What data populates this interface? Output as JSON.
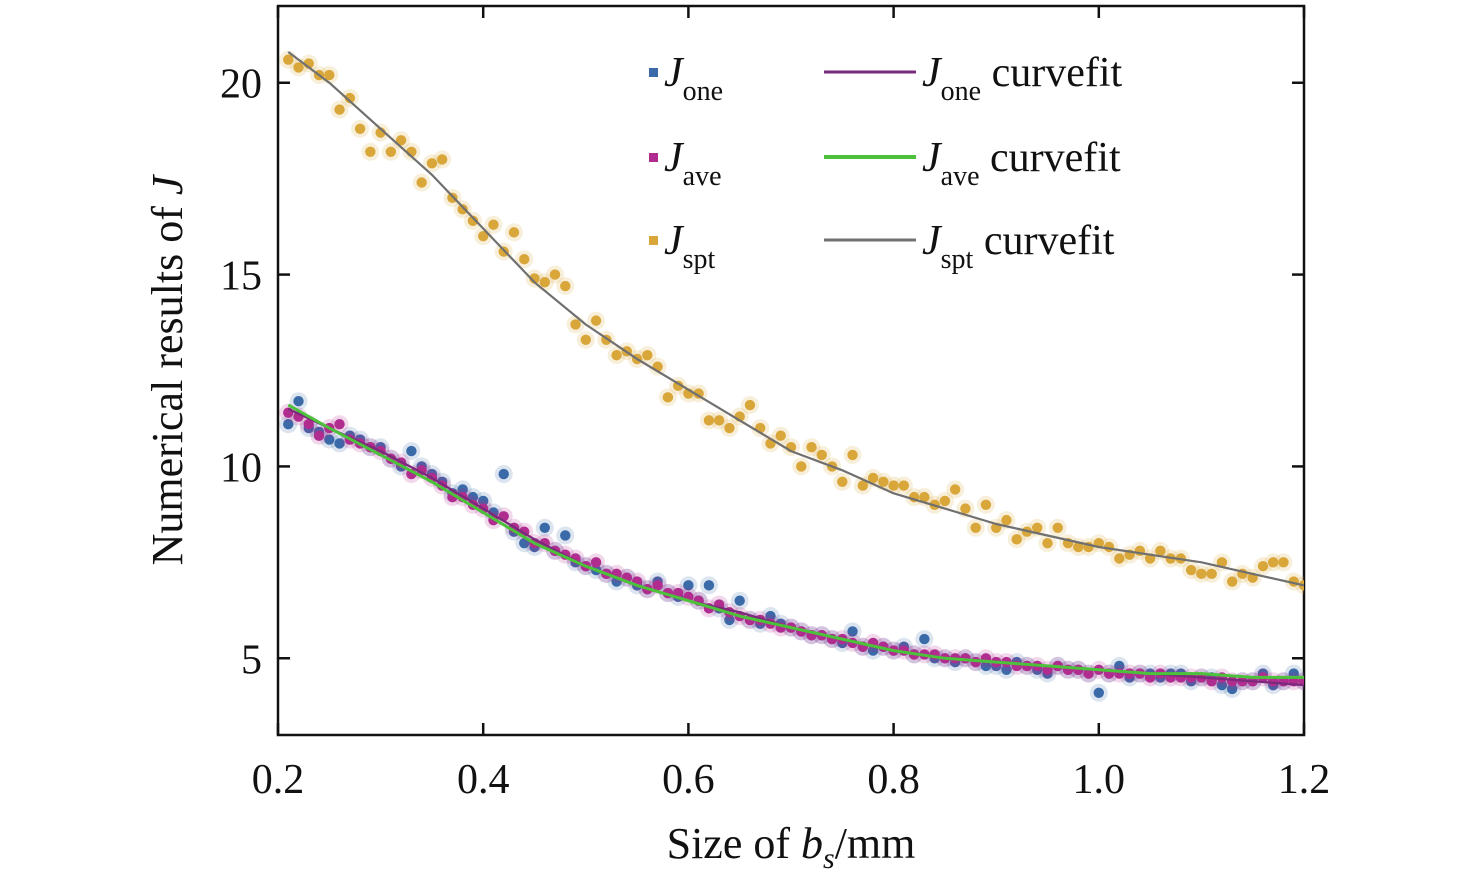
{
  "chart_data": {
    "type": "scatter",
    "xlabel": {
      "prefix": "Size of ",
      "var": "b",
      "sub": "s",
      "unit": "/mm"
    },
    "ylabel": {
      "prefix": "Numerical results of ",
      "var": "J"
    },
    "xlim": [
      0.2,
      1.2
    ],
    "ylim": [
      3.0,
      22.0
    ],
    "x_ticks": [
      0.2,
      0.4,
      0.6,
      0.8,
      1.0,
      1.2
    ],
    "x_tick_labels": [
      "0.2",
      "0.4",
      "0.6",
      "0.8",
      "1.0",
      "1.2"
    ],
    "y_ticks": [
      5,
      10,
      15,
      20
    ],
    "y_tick_labels": [
      "5",
      "10",
      "15",
      "20"
    ],
    "grid": false,
    "legend_position": "top-right",
    "series": [
      {
        "name": "J_one",
        "legend": {
          "var": "J",
          "sub": "one"
        },
        "kind": "points",
        "color": "#3a6aa8",
        "x": [
          0.21,
          0.22,
          0.23,
          0.24,
          0.25,
          0.26,
          0.27,
          0.28,
          0.29,
          0.3,
          0.31,
          0.32,
          0.33,
          0.34,
          0.35,
          0.36,
          0.37,
          0.38,
          0.39,
          0.4,
          0.41,
          0.42,
          0.43,
          0.44,
          0.45,
          0.46,
          0.47,
          0.48,
          0.49,
          0.5,
          0.51,
          0.52,
          0.53,
          0.54,
          0.55,
          0.56,
          0.57,
          0.58,
          0.59,
          0.6,
          0.61,
          0.62,
          0.63,
          0.64,
          0.65,
          0.66,
          0.67,
          0.68,
          0.69,
          0.7,
          0.71,
          0.72,
          0.73,
          0.74,
          0.75,
          0.76,
          0.77,
          0.78,
          0.79,
          0.8,
          0.81,
          0.82,
          0.83,
          0.84,
          0.85,
          0.86,
          0.87,
          0.88,
          0.89,
          0.9,
          0.91,
          0.92,
          0.93,
          0.94,
          0.95,
          0.96,
          0.97,
          0.98,
          0.99,
          1.0,
          1.01,
          1.02,
          1.03,
          1.04,
          1.05,
          1.06,
          1.07,
          1.08,
          1.09,
          1.1,
          1.11,
          1.12,
          1.13,
          1.14,
          1.15,
          1.16,
          1.17,
          1.18,
          1.19,
          1.2
        ],
        "y": [
          11.1,
          11.7,
          11.0,
          10.9,
          10.7,
          10.6,
          10.8,
          10.7,
          10.5,
          10.5,
          10.2,
          10.0,
          10.4,
          10.0,
          9.8,
          9.6,
          9.3,
          9.4,
          9.2,
          9.1,
          8.8,
          9.8,
          8.3,
          8.0,
          7.9,
          8.4,
          7.8,
          8.2,
          7.5,
          7.4,
          7.3,
          7.2,
          7.0,
          7.1,
          6.9,
          6.8,
          7.0,
          6.7,
          6.6,
          6.9,
          6.5,
          6.9,
          6.3,
          6.0,
          6.5,
          6.0,
          5.9,
          6.1,
          5.9,
          5.8,
          5.7,
          5.6,
          5.6,
          5.5,
          5.4,
          5.7,
          5.3,
          5.2,
          5.3,
          5.2,
          5.3,
          5.1,
          5.5,
          5.0,
          5.0,
          4.9,
          5.0,
          4.9,
          4.8,
          4.8,
          4.7,
          4.9,
          4.8,
          4.7,
          4.6,
          4.8,
          4.7,
          4.7,
          4.6,
          4.1,
          4.6,
          4.8,
          4.5,
          4.6,
          4.6,
          4.5,
          4.6,
          4.6,
          4.4,
          4.5,
          4.5,
          4.3,
          4.2,
          4.4,
          4.4,
          4.6,
          4.3,
          4.4,
          4.6,
          4.4
        ]
      },
      {
        "name": "J_ave",
        "legend": {
          "var": "J",
          "sub": "ave"
        },
        "kind": "points",
        "color": "#b02c8e",
        "x": [
          0.21,
          0.22,
          0.23,
          0.24,
          0.25,
          0.26,
          0.27,
          0.28,
          0.29,
          0.3,
          0.31,
          0.32,
          0.33,
          0.34,
          0.35,
          0.36,
          0.37,
          0.38,
          0.39,
          0.4,
          0.41,
          0.42,
          0.43,
          0.44,
          0.45,
          0.46,
          0.47,
          0.48,
          0.49,
          0.5,
          0.51,
          0.52,
          0.53,
          0.54,
          0.55,
          0.56,
          0.57,
          0.58,
          0.59,
          0.6,
          0.61,
          0.62,
          0.63,
          0.64,
          0.65,
          0.66,
          0.67,
          0.68,
          0.69,
          0.7,
          0.71,
          0.72,
          0.73,
          0.74,
          0.75,
          0.76,
          0.77,
          0.78,
          0.79,
          0.8,
          0.81,
          0.82,
          0.83,
          0.84,
          0.85,
          0.86,
          0.87,
          0.88,
          0.89,
          0.9,
          0.91,
          0.92,
          0.93,
          0.94,
          0.95,
          0.96,
          0.97,
          0.98,
          0.99,
          1.0,
          1.01,
          1.02,
          1.03,
          1.04,
          1.05,
          1.06,
          1.07,
          1.08,
          1.09,
          1.1,
          1.11,
          1.12,
          1.13,
          1.14,
          1.15,
          1.16,
          1.17,
          1.18,
          1.19,
          1.2
        ],
        "y": [
          11.4,
          11.3,
          11.1,
          10.8,
          11.0,
          11.1,
          10.7,
          10.6,
          10.5,
          10.4,
          10.2,
          10.1,
          9.8,
          9.9,
          9.7,
          9.5,
          9.2,
          9.2,
          9.0,
          8.9,
          8.6,
          8.7,
          8.4,
          8.3,
          8.0,
          8.0,
          7.8,
          7.7,
          7.6,
          7.4,
          7.5,
          7.2,
          7.2,
          7.1,
          7.0,
          6.8,
          6.9,
          6.7,
          6.7,
          6.6,
          6.5,
          6.3,
          6.4,
          6.2,
          6.1,
          6.0,
          6.0,
          5.9,
          5.8,
          5.8,
          5.7,
          5.6,
          5.6,
          5.5,
          5.5,
          5.4,
          5.3,
          5.4,
          5.3,
          5.2,
          5.2,
          5.1,
          5.1,
          5.1,
          5.0,
          5.0,
          5.0,
          4.9,
          5.0,
          4.9,
          4.9,
          4.8,
          4.8,
          4.8,
          4.7,
          4.8,
          4.7,
          4.7,
          4.6,
          4.7,
          4.6,
          4.6,
          4.6,
          4.6,
          4.5,
          4.6,
          4.5,
          4.5,
          4.5,
          4.5,
          4.4,
          4.5,
          4.4,
          4.4,
          4.4,
          4.5,
          4.4,
          4.4,
          4.4,
          4.4
        ]
      },
      {
        "name": "J_spt",
        "legend": {
          "var": "J",
          "sub": "spt"
        },
        "kind": "points",
        "color": "#d9a63a",
        "x": [
          0.21,
          0.22,
          0.23,
          0.24,
          0.25,
          0.26,
          0.27,
          0.28,
          0.29,
          0.3,
          0.31,
          0.32,
          0.33,
          0.34,
          0.35,
          0.36,
          0.37,
          0.38,
          0.39,
          0.4,
          0.41,
          0.42,
          0.43,
          0.44,
          0.45,
          0.46,
          0.47,
          0.48,
          0.49,
          0.5,
          0.51,
          0.52,
          0.53,
          0.54,
          0.55,
          0.56,
          0.57,
          0.58,
          0.59,
          0.6,
          0.61,
          0.62,
          0.63,
          0.64,
          0.65,
          0.66,
          0.67,
          0.68,
          0.69,
          0.7,
          0.71,
          0.72,
          0.73,
          0.74,
          0.75,
          0.76,
          0.77,
          0.78,
          0.79,
          0.8,
          0.81,
          0.82,
          0.83,
          0.84,
          0.85,
          0.86,
          0.87,
          0.88,
          0.89,
          0.9,
          0.91,
          0.92,
          0.93,
          0.94,
          0.95,
          0.96,
          0.97,
          0.98,
          0.99,
          1.0,
          1.01,
          1.02,
          1.03,
          1.04,
          1.05,
          1.06,
          1.07,
          1.08,
          1.09,
          1.1,
          1.11,
          1.12,
          1.13,
          1.14,
          1.15,
          1.16,
          1.17,
          1.18,
          1.19,
          1.2
        ],
        "y": [
          20.6,
          20.4,
          20.5,
          20.2,
          20.2,
          19.3,
          19.6,
          18.8,
          18.2,
          18.7,
          18.2,
          18.5,
          18.2,
          17.4,
          17.9,
          18.0,
          17.0,
          16.7,
          16.4,
          16.0,
          16.3,
          15.6,
          16.1,
          15.4,
          14.9,
          14.8,
          15.0,
          14.7,
          13.7,
          13.3,
          13.8,
          13.3,
          12.9,
          13.0,
          12.8,
          12.9,
          12.6,
          11.8,
          12.1,
          11.9,
          11.9,
          11.2,
          11.2,
          11.0,
          11.3,
          11.6,
          11.0,
          10.6,
          10.8,
          10.5,
          10.0,
          10.5,
          10.3,
          10.0,
          9.6,
          10.3,
          9.5,
          9.7,
          9.6,
          9.5,
          9.5,
          9.2,
          9.2,
          9.0,
          9.1,
          9.4,
          8.9,
          8.4,
          9.0,
          8.4,
          8.6,
          8.1,
          8.3,
          8.4,
          8.0,
          8.4,
          8.0,
          7.9,
          7.9,
          8.0,
          7.9,
          7.6,
          7.7,
          7.8,
          7.6,
          7.8,
          7.6,
          7.6,
          7.3,
          7.2,
          7.2,
          7.5,
          7.0,
          7.2,
          7.1,
          7.4,
          7.5,
          7.5,
          7.0,
          6.9
        ]
      },
      {
        "name": "J_one curvefit",
        "legend": {
          "var": "J",
          "sub": "one",
          "suffix": " curvefit"
        },
        "kind": "line",
        "color": "#7a2a7a",
        "x": [
          0.21,
          0.25,
          0.3,
          0.35,
          0.4,
          0.45,
          0.5,
          0.55,
          0.6,
          0.65,
          0.7,
          0.75,
          0.8,
          0.85,
          0.9,
          0.95,
          1.0,
          1.05,
          1.1,
          1.15,
          1.2
        ],
        "y": [
          11.5,
          11.0,
          10.4,
          9.7,
          8.9,
          8.1,
          7.4,
          6.9,
          6.5,
          6.2,
          5.8,
          5.5,
          5.2,
          5.0,
          4.9,
          4.8,
          4.7,
          4.6,
          4.5,
          4.4,
          4.3
        ]
      },
      {
        "name": "J_ave curvefit",
        "legend": {
          "var": "J",
          "sub": "ave",
          "suffix": " curvefit"
        },
        "kind": "line",
        "color": "#4cc23a",
        "x": [
          0.21,
          0.25,
          0.3,
          0.35,
          0.4,
          0.45,
          0.5,
          0.55,
          0.6,
          0.65,
          0.7,
          0.75,
          0.8,
          0.85,
          0.9,
          0.95,
          1.0,
          1.05,
          1.1,
          1.15,
          1.2
        ],
        "y": [
          11.6,
          11.0,
          10.3,
          9.6,
          8.8,
          8.0,
          7.4,
          6.9,
          6.5,
          6.1,
          5.8,
          5.5,
          5.2,
          5.0,
          4.9,
          4.8,
          4.7,
          4.6,
          4.6,
          4.5,
          4.5
        ]
      },
      {
        "name": "J_spt curvefit",
        "legend": {
          "var": "J",
          "sub": "spt",
          "suffix": " curvefit"
        },
        "kind": "line",
        "color": "#707070",
        "x": [
          0.21,
          0.25,
          0.3,
          0.35,
          0.4,
          0.45,
          0.5,
          0.55,
          0.6,
          0.65,
          0.7,
          0.75,
          0.8,
          0.85,
          0.9,
          0.95,
          1.0,
          1.05,
          1.1,
          1.15,
          1.2
        ],
        "y": [
          20.8,
          20.0,
          18.8,
          17.6,
          16.2,
          14.8,
          13.7,
          12.8,
          12.0,
          11.2,
          10.4,
          9.9,
          9.3,
          8.9,
          8.5,
          8.2,
          7.9,
          7.7,
          7.5,
          7.2,
          6.9
        ]
      }
    ]
  }
}
